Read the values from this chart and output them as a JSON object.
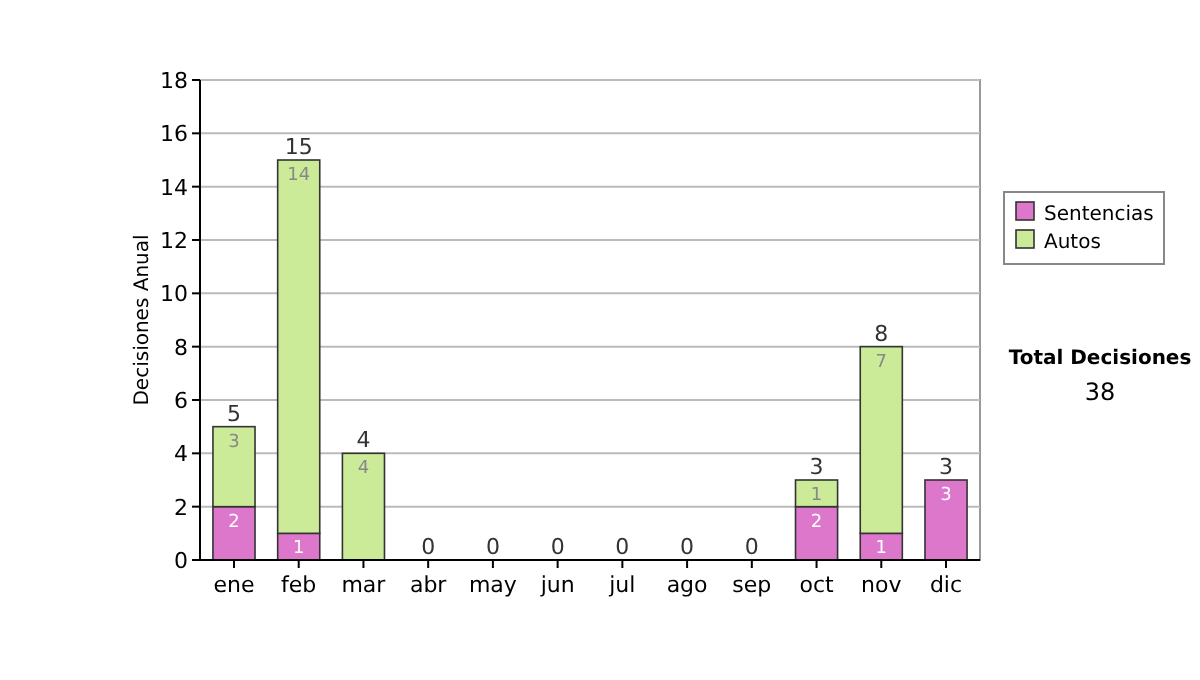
{
  "chart_data": {
    "type": "bar",
    "stacked": true,
    "ylabel": "Decisiones Anual",
    "categories": [
      "ene",
      "feb",
      "mar",
      "abr",
      "may",
      "jun",
      "jul",
      "ago",
      "sep",
      "oct",
      "nov",
      "dic"
    ],
    "series": [
      {
        "name": "Sentencias",
        "color": "#dd77cc",
        "values": [
          2,
          1,
          0,
          0,
          0,
          0,
          0,
          0,
          0,
          2,
          1,
          3
        ],
        "value_labels": [
          "2",
          "1",
          null,
          null,
          null,
          null,
          null,
          null,
          null,
          "2",
          "1",
          "3"
        ]
      },
      {
        "name": "Autos",
        "color": "#cceb99",
        "values": [
          3,
          14,
          4,
          0,
          0,
          0,
          0,
          0,
          0,
          1,
          7,
          0
        ],
        "value_labels": [
          "3",
          "14",
          "4",
          null,
          null,
          null,
          null,
          null,
          null,
          "1",
          "7",
          null
        ]
      }
    ],
    "totals": [
      "5",
      "15",
      "4",
      "0",
      "0",
      "0",
      "0",
      "0",
      "0",
      "3",
      "8",
      "3"
    ],
    "ylim": [
      0,
      18
    ],
    "yticks": [
      0,
      2,
      4,
      6,
      8,
      10,
      12,
      14,
      16,
      18
    ],
    "grid": "y",
    "legend": "right",
    "annotations": [
      "Total Decisiones",
      "38"
    ]
  }
}
